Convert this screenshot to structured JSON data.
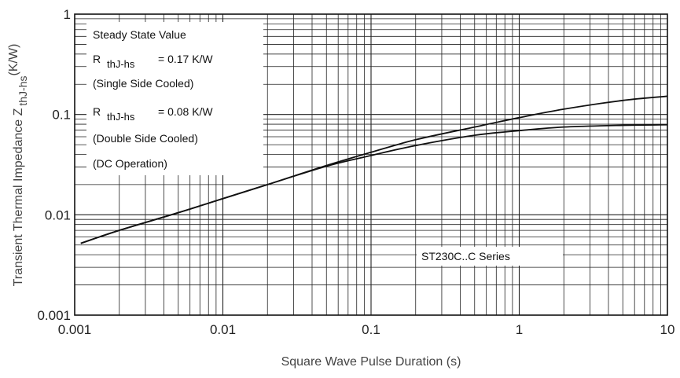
{
  "chart_data": {
    "type": "line",
    "title": "",
    "xlabel": "Square Wave Pulse Duration (s)",
    "ylabel": "Transient Thermal Impedance Z",
    "ylabel_subscript": "thJ-hs",
    "ylabel_unit": "(K/W)",
    "xscale": "log",
    "yscale": "log",
    "xlim": [
      0.001,
      10
    ],
    "ylim": [
      0.001,
      1
    ],
    "x_ticks": [
      "0.001",
      "0.01",
      "0.1",
      "1",
      "10"
    ],
    "y_ticks": [
      "0.001",
      "0.01",
      "0.1",
      "1"
    ],
    "grid": true,
    "notes": {
      "line1": "Steady State Value",
      "r1_symbol": "R",
      "r1_sub": "thJ-hs",
      "r1_value": "= 0.17 K/W",
      "line3": "(Single Side Cooled)",
      "r2_symbol": "R",
      "r2_sub": "thJ-hs",
      "r2_value": "= 0.08 K/W",
      "line5": "(Double Side Cooled)",
      "line6": "(DC Operation)"
    },
    "series_label": "ST230C..C Series",
    "series": [
      {
        "x": [
          0.0011,
          0.002,
          0.005,
          0.01,
          0.02,
          0.05,
          0.1,
          0.2,
          0.5,
          1,
          2,
          5,
          10
        ],
        "values": [
          0.0052,
          0.007,
          0.0105,
          0.0145,
          0.02,
          0.031,
          0.042,
          0.056,
          0.075,
          0.093,
          0.113,
          0.138,
          0.152
        ]
      },
      {
        "x": [
          0.0011,
          0.002,
          0.005,
          0.01,
          0.02,
          0.05,
          0.1,
          0.2,
          0.5,
          1,
          2,
          5,
          10
        ],
        "values": [
          0.0052,
          0.007,
          0.0105,
          0.0145,
          0.02,
          0.0305,
          0.039,
          0.049,
          0.062,
          0.069,
          0.075,
          0.078,
          0.079
        ]
      }
    ]
  }
}
